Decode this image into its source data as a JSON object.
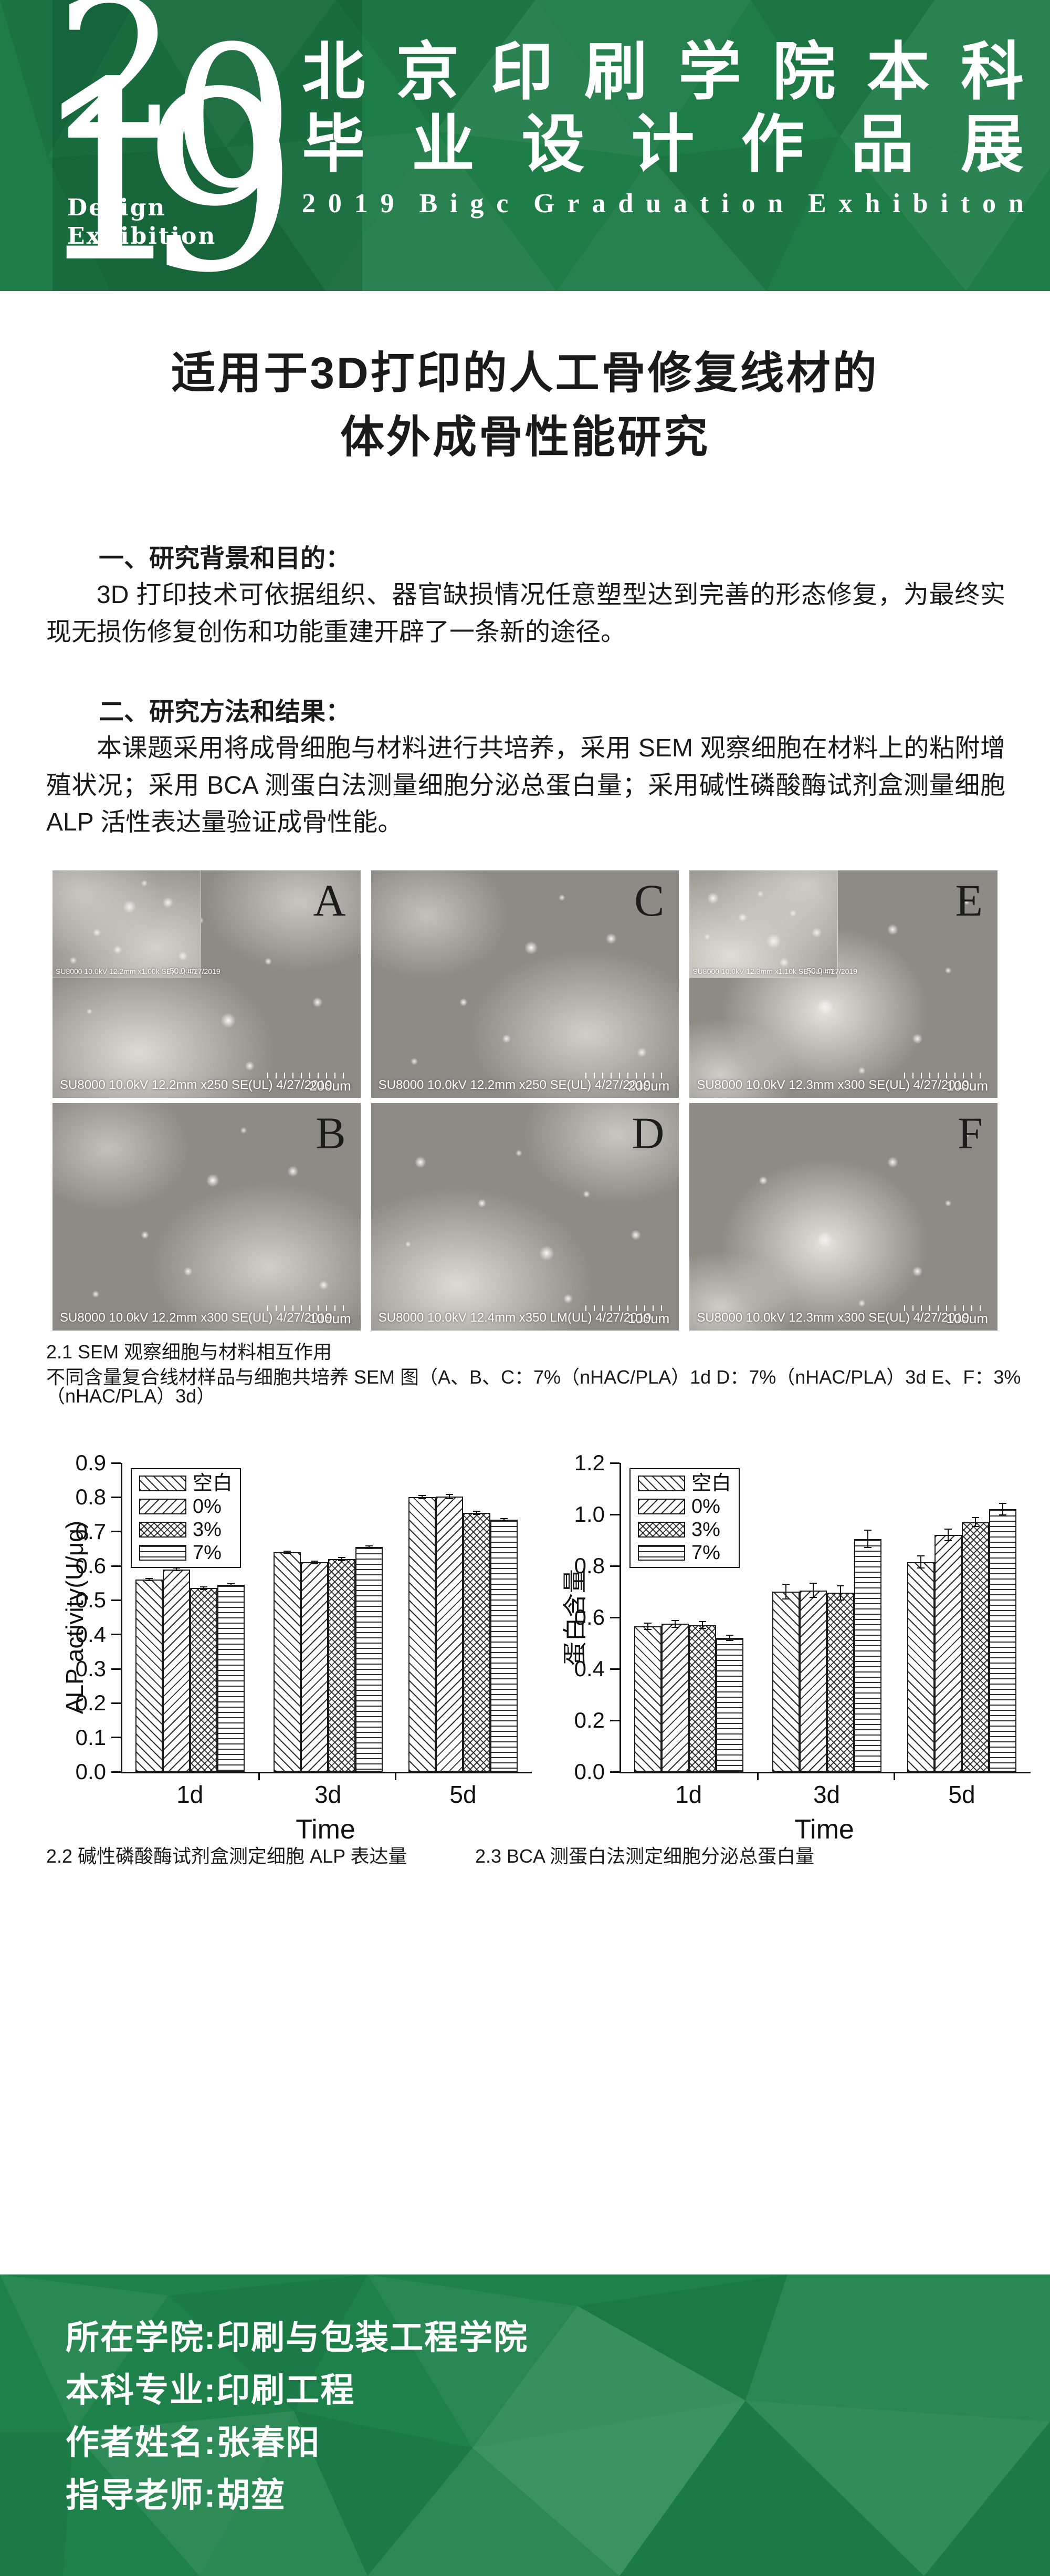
{
  "header": {
    "logo": {
      "digit_2": "2",
      "digit_0": "0",
      "digit_1": "1",
      "digit_9": "9",
      "subtitle_line1": "Design",
      "subtitle_line2": "Exhibition"
    },
    "title_line1": "北京印刷学院本科",
    "title_line2": "毕业设计作品展",
    "title_en": "2019 Bigc Graduation Exhibiton",
    "colors": {
      "band_green": "#1e7c47",
      "logo_panel_green": "#176f40",
      "footer_green": "#1d8149"
    }
  },
  "poster": {
    "title_line1": "适用于3D打印的人工骨修复线材的",
    "title_line2": "体外成骨性能研究",
    "section1": {
      "heading": "一、研究背景和目的：",
      "body": "3D 打印技术可依据组织、器官缺损情况任意塑型达到完善的形态修复，为最终实现无损伤修复创伤和功能重建开辟了一条新的途径。"
    },
    "section2": {
      "heading": "二、研究方法和结果：",
      "body": "本课题采用将成骨细胞与材料进行共培养，采用 SEM 观察细胞在材料上的粘附增殖状况；采用 BCA 测蛋白法测量细胞分泌总蛋白量；采用碱性磷酸酶试剂盒测量细胞 ALP 活性表达量验证成骨性能。"
    }
  },
  "sem": {
    "caption_title": "2.1 SEM 观察细胞与材料相互作用",
    "caption_detail": "不同含量复合线材样品与细胞共培养 SEM 图（A、B、C：7%（nHAC/PLA）1d D：7%（nHAC/PLA）3d E、F：3%（nHAC/PLA）3d）",
    "panels": [
      {
        "label": "A",
        "meta": "SU8000 10.0kV 12.2mm x250 SE(UL) 4/27/2019",
        "scale": "200um",
        "inset_meta": "SU8000 10.0kV 12.2mm x1.00k SE(UL) 4/27/2019",
        "inset_scale": "50.0um"
      },
      {
        "label": "C",
        "meta": "SU8000 10.0kV 12.2mm x250 SE(UL) 4/27/2019",
        "scale": "200um"
      },
      {
        "label": "E",
        "meta": "SU8000 10.0kV 12.3mm x300 SE(UL) 4/27/2019",
        "scale": "100um",
        "inset_meta": "SU8000 10.0kV 12.3mm x1.10k SE(UL) 4/27/2019",
        "inset_scale": "50.0um"
      },
      {
        "label": "B",
        "meta": "SU8000 10.0kV 12.2mm x300 SE(UL) 4/27/2019",
        "scale": "100um"
      },
      {
        "label": "D",
        "meta": "SU8000 10.0kV 12.4mm x350 LM(UL) 4/27/2019",
        "scale": "100um"
      },
      {
        "label": "F",
        "meta": "SU8000 10.0kV 12.3mm x300 SE(UL) 4/27/2019",
        "scale": "100um"
      }
    ]
  },
  "chart_data": [
    {
      "type": "bar",
      "title": "",
      "ylabel": "ALP activity(U/μg)",
      "xlabel": "Time",
      "categories": [
        "1d",
        "3d",
        "5d"
      ],
      "ylim": [
        0,
        0.9
      ],
      "ytick_step": 0.1,
      "legend_position": "top-left",
      "grid": false,
      "series": [
        {
          "name": "空白",
          "values": [
            0.56,
            0.64,
            0.8
          ],
          "errors": [
            0.005,
            0.005,
            0.006
          ]
        },
        {
          "name": "0%",
          "values": [
            0.59,
            0.61,
            0.802
          ],
          "errors": [
            0.005,
            0.005,
            0.008
          ]
        },
        {
          "name": "3%",
          "values": [
            0.535,
            0.62,
            0.755
          ],
          "errors": [
            0.005,
            0.006,
            0.006
          ]
        },
        {
          "name": "7%",
          "values": [
            0.545,
            0.655,
            0.735
          ],
          "errors": [
            0.004,
            0.004,
            0.005
          ]
        }
      ]
    },
    {
      "type": "bar",
      "title": "",
      "ylabel": "蛋白含量",
      "xlabel": "Time",
      "categories": [
        "1d",
        "3d",
        "5d"
      ],
      "ylim": [
        0,
        1.2
      ],
      "ytick_step": 0.2,
      "legend_position": "top-left",
      "grid": false,
      "series": [
        {
          "name": "空白",
          "values": [
            0.565,
            0.7,
            0.815
          ],
          "errors": [
            0.015,
            0.03,
            0.025
          ]
        },
        {
          "name": "0%",
          "values": [
            0.575,
            0.705,
            0.92
          ],
          "errors": [
            0.015,
            0.03,
            0.025
          ]
        },
        {
          "name": "3%",
          "values": [
            0.57,
            0.695,
            0.97
          ],
          "errors": [
            0.015,
            0.03,
            0.02
          ]
        },
        {
          "name": "7%",
          "values": [
            0.52,
            0.905,
            1.02
          ],
          "errors": [
            0.012,
            0.035,
            0.025
          ]
        }
      ]
    }
  ],
  "chart_captions": {
    "left": "2.2 碱性磷酸酶试剂盒测定细胞 ALP 表达量",
    "right": "2.3 BCA 测蛋白法测定细胞分泌总蛋白量"
  },
  "footer": {
    "lines": [
      "所在学院:印刷与包装工程学院",
      "本科专业:印刷工程",
      "作者姓名:张春阳",
      "指导老师:胡堃"
    ]
  }
}
